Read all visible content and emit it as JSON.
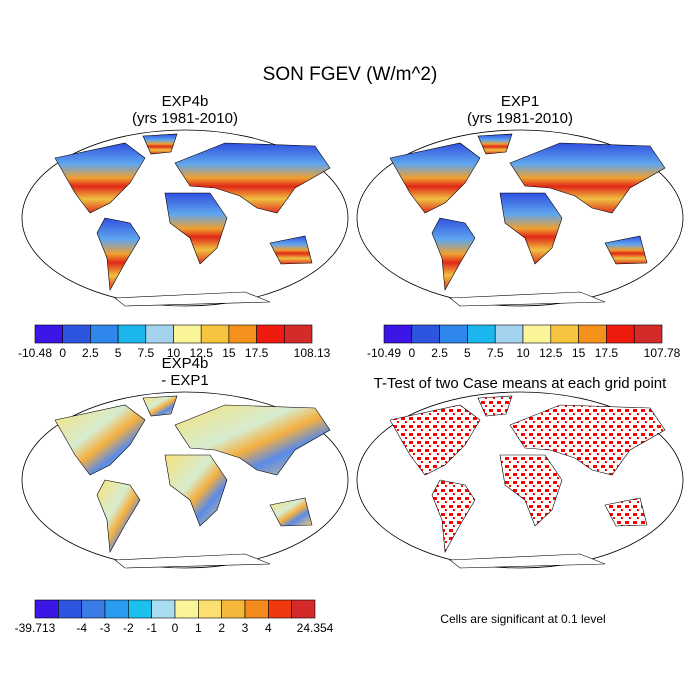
{
  "title": "SON FGEV (W/m^2)",
  "panels": [
    {
      "title": "EXP4b",
      "subtitle": "(yrs 1981-2010)",
      "colorbar": {
        "colors": [
          "#3b16e6",
          "#2d55e0",
          "#2f86ec",
          "#1cb6ef",
          "#a3d3ee",
          "#fbf59a",
          "#f6c43f",
          "#f4901c",
          "#ef1b0f",
          "#d42a2a"
        ],
        "labels": [
          "-10.48",
          "0",
          "2.5",
          "5",
          "7.5",
          "10",
          "12.5",
          "15",
          "17.5",
          null,
          "108.13"
        ]
      }
    },
    {
      "title": "EXP1",
      "subtitle": "(yrs 1981-2010)",
      "colorbar": {
        "colors": [
          "#3b16e6",
          "#2d55e0",
          "#2f86ec",
          "#1cb6ef",
          "#a3d3ee",
          "#fbf59a",
          "#f6c43f",
          "#f4901c",
          "#ef1b0f",
          "#d42a2a"
        ],
        "labels": [
          "-10.49",
          "0",
          "2.5",
          "5",
          "7.5",
          "10",
          "12.5",
          "15",
          "17.5",
          null,
          "107.78"
        ]
      }
    },
    {
      "title": "EXP4b",
      "subtitle": "- EXP1",
      "colorbar": {
        "colors": [
          "#3b16e6",
          "#2d55e0",
          "#3a7be8",
          "#2a9cf0",
          "#1cc0ef",
          "#a8dcf0",
          "#fbf59a",
          "#fbe070",
          "#f6b83a",
          "#f48a1c",
          "#ef3a10",
          "#d42a2a"
        ],
        "labels": [
          "-39.713",
          null,
          "-4",
          "-3",
          "-2",
          "-1",
          "0",
          "1",
          "2",
          "3",
          "4",
          null,
          "24.354"
        ]
      }
    },
    {
      "title": "T-Test of two Case means at each grid point",
      "note": "Cells are significant at 0.1 level"
    }
  ]
}
